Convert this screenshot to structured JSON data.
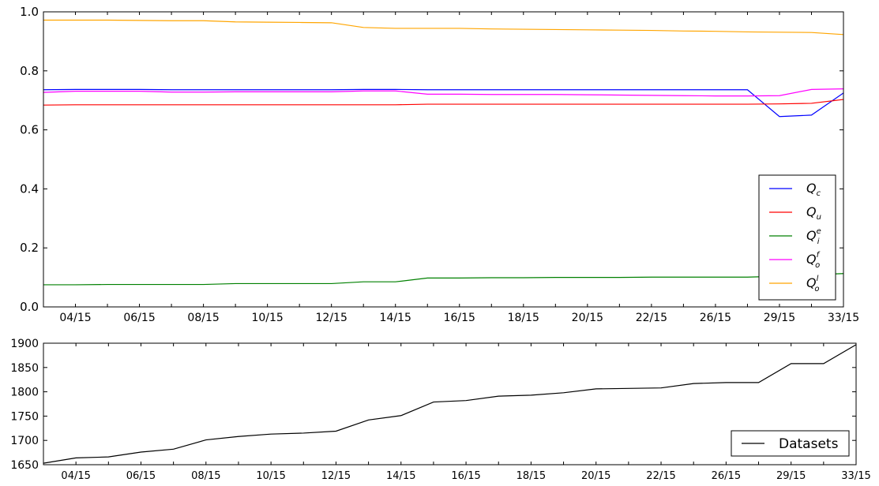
{
  "chart_data": [
    {
      "type": "line",
      "title": "",
      "xlabel": "",
      "ylabel": "",
      "categories": [
        "",
        "04/15",
        "",
        "06/15",
        "",
        "08/15",
        "",
        "10/15",
        "",
        "12/15",
        "",
        "14/15",
        "",
        "16/15",
        "",
        "18/15",
        "",
        "20/15",
        "",
        "22/15",
        "",
        "26/15",
        "",
        "29/15",
        "",
        "33/15"
      ],
      "x_tick_labels": [
        "04/15",
        "06/15",
        "08/15",
        "10/15",
        "12/15",
        "14/15",
        "16/15",
        "18/15",
        "20/15",
        "22/15",
        "26/15",
        "29/15",
        "33/15"
      ],
      "y_tick_labels": [
        "0.0",
        "0.2",
        "0.4",
        "0.6",
        "0.8",
        "1.0"
      ],
      "ylim": [
        0,
        1
      ],
      "legend_position": "lower-right",
      "grid": false,
      "series": [
        {
          "name": "Q_c",
          "legend_label": {
            "base": "Q",
            "sub": "c",
            "sup": ""
          },
          "color": "#0000ff",
          "values": [
            0.736,
            0.737,
            0.737,
            0.737,
            0.736,
            0.736,
            0.736,
            0.736,
            0.736,
            0.736,
            0.737,
            0.737,
            0.736,
            0.736,
            0.736,
            0.736,
            0.736,
            0.736,
            0.736,
            0.736,
            0.736,
            0.736,
            0.736,
            0.645,
            0.65,
            0.725
          ]
        },
        {
          "name": "Q_u",
          "legend_label": {
            "base": "Q",
            "sub": "u",
            "sup": ""
          },
          "color": "#ff0000",
          "values": [
            0.684,
            0.685,
            0.685,
            0.685,
            0.685,
            0.685,
            0.685,
            0.685,
            0.685,
            0.685,
            0.685,
            0.685,
            0.687,
            0.687,
            0.687,
            0.687,
            0.687,
            0.687,
            0.687,
            0.687,
            0.687,
            0.687,
            0.687,
            0.688,
            0.69,
            0.703
          ]
        },
        {
          "name": "Q_i^e",
          "legend_label": {
            "base": "Q",
            "sub": "i",
            "sup": "e"
          },
          "color": "#008000",
          "values": [
            0.075,
            0.075,
            0.076,
            0.076,
            0.076,
            0.076,
            0.079,
            0.079,
            0.079,
            0.079,
            0.085,
            0.085,
            0.098,
            0.098,
            0.099,
            0.099,
            0.1,
            0.1,
            0.1,
            0.101,
            0.101,
            0.101,
            0.101,
            0.104,
            0.109,
            0.113
          ]
        },
        {
          "name": "Q_o^f",
          "legend_label": {
            "base": "Q",
            "sub": "o",
            "sup": "f"
          },
          "color": "#ff00ff",
          "values": [
            0.727,
            0.731,
            0.731,
            0.731,
            0.728,
            0.728,
            0.729,
            0.729,
            0.729,
            0.729,
            0.732,
            0.732,
            0.721,
            0.721,
            0.72,
            0.72,
            0.72,
            0.719,
            0.718,
            0.717,
            0.716,
            0.715,
            0.715,
            0.716,
            0.737,
            0.739
          ]
        },
        {
          "name": "Q_o^l",
          "legend_label": {
            "base": "Q",
            "sub": "o",
            "sup": "l"
          },
          "color": "#ffa500",
          "values": [
            0.972,
            0.972,
            0.972,
            0.971,
            0.97,
            0.97,
            0.966,
            0.965,
            0.964,
            0.963,
            0.947,
            0.944,
            0.944,
            0.944,
            0.942,
            0.941,
            0.94,
            0.939,
            0.938,
            0.937,
            0.935,
            0.934,
            0.932,
            0.931,
            0.93,
            0.923
          ]
        }
      ]
    },
    {
      "type": "line",
      "title": "",
      "xlabel": "",
      "ylabel": "",
      "categories": [
        "",
        "04/15",
        "",
        "06/15",
        "",
        "08/15",
        "",
        "10/15",
        "",
        "12/15",
        "",
        "14/15",
        "",
        "16/15",
        "",
        "18/15",
        "",
        "20/15",
        "",
        "22/15",
        "",
        "26/15",
        "",
        "29/15",
        "",
        "33/15"
      ],
      "x_tick_labels": [
        "04/15",
        "06/15",
        "08/15",
        "10/15",
        "12/15",
        "14/15",
        "16/15",
        "18/15",
        "20/15",
        "22/15",
        "26/15",
        "29/15",
        "33/15"
      ],
      "y_tick_labels": [
        "1650",
        "1700",
        "1750",
        "1800",
        "1850",
        "1900"
      ],
      "ylim": [
        1650,
        1900
      ],
      "legend_position": "lower-right",
      "grid": false,
      "series": [
        {
          "name": "Datasets",
          "legend_label": {
            "base": "Datasets",
            "sub": "",
            "sup": ""
          },
          "color": "#000000",
          "values": [
            1653,
            1664,
            1666,
            1676,
            1682,
            1701,
            1708,
            1713,
            1715,
            1719,
            1742,
            1751,
            1779,
            1782,
            1791,
            1793,
            1798,
            1806,
            1807,
            1808,
            1817,
            1819,
            1819,
            1858,
            1858,
            1897
          ]
        }
      ]
    }
  ]
}
